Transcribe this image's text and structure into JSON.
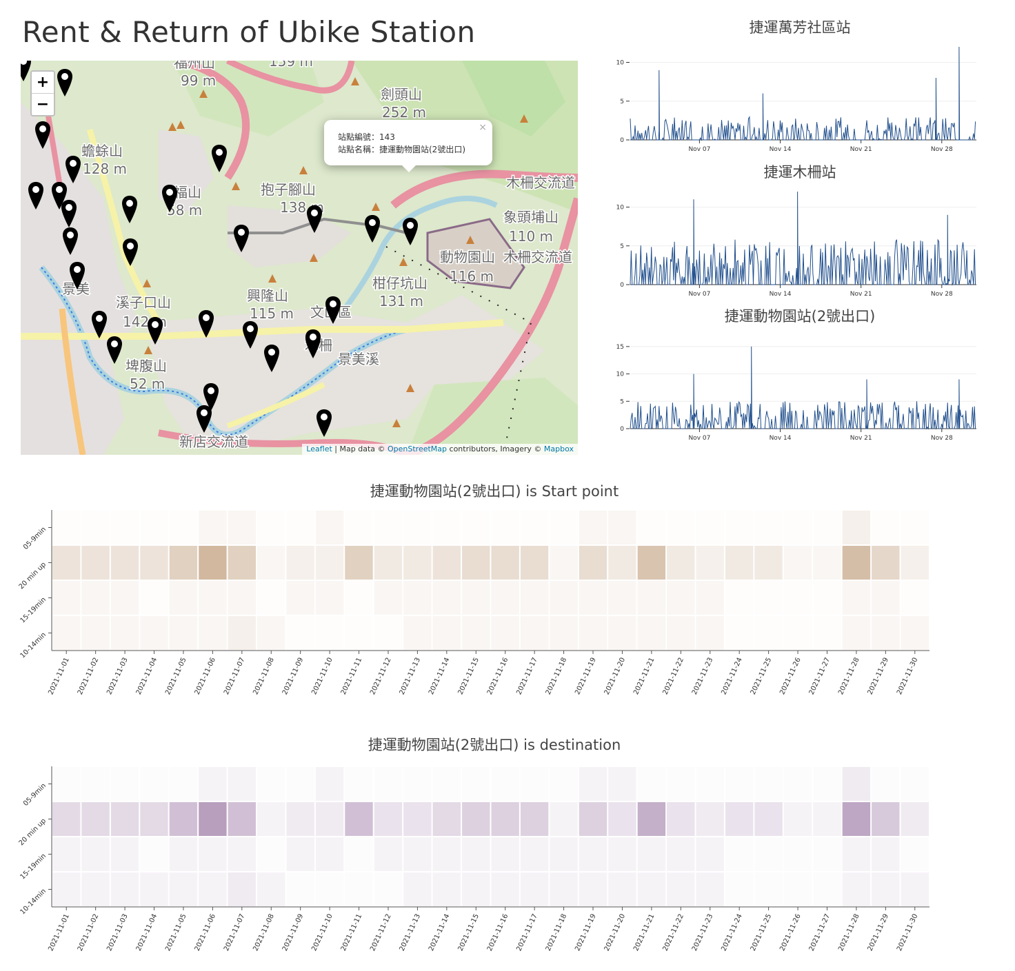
{
  "page": {
    "title": "Rent & Return of Ubike Station"
  },
  "map": {
    "zoom_in": "+",
    "zoom_out": "−",
    "popup": {
      "line1": "站點編號：143",
      "line2": "站點名稱：捷運動物園站(2號出口)",
      "close": "×"
    },
    "attribution": {
      "leaflet": "Leaflet",
      "sep1": " | Map data © ",
      "osm": "OpenStreetMap",
      "sep2": " contributors, Imagery © ",
      "mapbox": "Mapbox"
    },
    "labels": [
      {
        "text": "福州山"
      },
      {
        "text": "99 m"
      },
      {
        "text": "159 m"
      },
      {
        "text": "劍頭山"
      },
      {
        "text": "252 m"
      },
      {
        "text": "蟾蜍山"
      },
      {
        "text": "128 m"
      },
      {
        "text": "福山"
      },
      {
        "text": "58 m"
      },
      {
        "text": "抱子腳山"
      },
      {
        "text": "138 m"
      },
      {
        "text": "木柵交流道"
      },
      {
        "text": "象頭埔山"
      },
      {
        "text": "110 m"
      },
      {
        "text": "動物園山"
      },
      {
        "text": "116 m"
      },
      {
        "text": "木柵交流道"
      },
      {
        "text": "景美"
      },
      {
        "text": "溪子口山"
      },
      {
        "text": "142 m"
      },
      {
        "text": "興隆山"
      },
      {
        "text": "115 m"
      },
      {
        "text": "文山區"
      },
      {
        "text": "柑仔坑山"
      },
      {
        "text": "131 m"
      },
      {
        "text": "埤腹山"
      },
      {
        "text": "52 m"
      },
      {
        "text": "新店交流道"
      },
      {
        "text": "木柵"
      },
      {
        "text": "景美溪"
      }
    ]
  },
  "timeseries": {
    "x_ticks": [
      "Nov 07",
      "Nov 14",
      "Nov 21",
      "Nov 28"
    ],
    "line_color": "#1f4e8c",
    "charts": [
      {
        "title": "捷運萬芳社區站",
        "y_ticks": [
          "0",
          "5",
          "10"
        ],
        "ymax": 12
      },
      {
        "title": "捷運木柵站",
        "y_ticks": [
          "0",
          "5",
          "10"
        ],
        "ymax": 12
      },
      {
        "title": "捷運動物園站(2號出口)",
        "y_ticks": [
          "0",
          "5",
          "10",
          "15"
        ],
        "ymax": 17
      }
    ]
  },
  "chart_data": [
    {
      "type": "line",
      "title": "捷運萬芳社區站",
      "x_range": [
        "2021-11-01",
        "2021-11-30"
      ],
      "ylim": [
        0,
        12
      ],
      "peaks": [
        {
          "x": "2021-11-03",
          "y": 9
        },
        {
          "x": "2021-11-12",
          "y": 6
        },
        {
          "x": "2021-11-27",
          "y": 8
        },
        {
          "x": "2021-11-29",
          "y": 12
        }
      ],
      "typical_range": [
        0,
        3
      ]
    },
    {
      "type": "line",
      "title": "捷運木柵站",
      "x_range": [
        "2021-11-01",
        "2021-11-30"
      ],
      "ylim": [
        0,
        12
      ],
      "peaks": [
        {
          "x": "2021-11-06",
          "y": 11
        },
        {
          "x": "2021-11-15",
          "y": 12
        },
        {
          "x": "2021-11-28",
          "y": 9
        }
      ],
      "typical_range": [
        0,
        6
      ]
    },
    {
      "type": "line",
      "title": "捷運動物園站(2號出口)",
      "x_range": [
        "2021-11-01",
        "2021-11-30"
      ],
      "ylim": [
        0,
        17
      ],
      "peaks": [
        {
          "x": "2021-11-06",
          "y": 10
        },
        {
          "x": "2021-11-11",
          "y": 15
        },
        {
          "x": "2021-11-21",
          "y": 9
        },
        {
          "x": "2021-11-29",
          "y": 9
        }
      ],
      "typical_range": [
        0,
        5
      ]
    },
    {
      "type": "heatmap",
      "title": "捷運動物園站(2號出口) is Start point",
      "color": "#b48c64",
      "x": [
        "2021-11-01",
        "2021-11-02",
        "2021-11-03",
        "2021-11-04",
        "2021-11-05",
        "2021-11-06",
        "2021-11-07",
        "2021-11-08",
        "2021-11-09",
        "2021-11-10",
        "2021-11-11",
        "2021-11-12",
        "2021-11-13",
        "2021-11-14",
        "2021-11-15",
        "2021-11-16",
        "2021-11-17",
        "2021-11-18",
        "2021-11-19",
        "2021-11-20",
        "2021-11-21",
        "2021-11-22",
        "2021-11-23",
        "2021-11-24",
        "2021-11-25",
        "2021-11-26",
        "2021-11-27",
        "2021-11-28",
        "2021-11-29",
        "2021-11-30"
      ],
      "y": [
        "05-9min",
        "20 min up",
        "15-19min",
        "10-14min"
      ],
      "values": [
        [
          0,
          0,
          0,
          0,
          0,
          1,
          1,
          0,
          0,
          1,
          0,
          0,
          0,
          0,
          0,
          0,
          0,
          0,
          1,
          1,
          0,
          0,
          0,
          0,
          0,
          0,
          0,
          2,
          0,
          0
        ],
        [
          4,
          4,
          4,
          4,
          7,
          11,
          7,
          1,
          2,
          2,
          7,
          3,
          3,
          4,
          5,
          5,
          5,
          1,
          5,
          3,
          9,
          3,
          2,
          3,
          3,
          1,
          1,
          10,
          6,
          2
        ],
        [
          1,
          1,
          1,
          0,
          1,
          1,
          1,
          0,
          1,
          1,
          0,
          1,
          1,
          1,
          1,
          1,
          1,
          1,
          1,
          1,
          1,
          1,
          1,
          0,
          0,
          0,
          0,
          1,
          1,
          0
        ],
        [
          1,
          1,
          1,
          1,
          1,
          1,
          2,
          1,
          0,
          0,
          0,
          0,
          1,
          1,
          1,
          1,
          1,
          1,
          1,
          1,
          1,
          1,
          1,
          0,
          0,
          0,
          0,
          1,
          1,
          1
        ]
      ]
    },
    {
      "type": "heatmap",
      "title": "捷運動物園站(2號出口) is destination",
      "color": "#8c6496",
      "x": [
        "2021-11-01",
        "2021-11-02",
        "2021-11-03",
        "2021-11-04",
        "2021-11-05",
        "2021-11-06",
        "2021-11-07",
        "2021-11-08",
        "2021-11-09",
        "2021-11-10",
        "2021-11-11",
        "2021-11-12",
        "2021-11-13",
        "2021-11-14",
        "2021-11-15",
        "2021-11-16",
        "2021-11-17",
        "2021-11-18",
        "2021-11-19",
        "2021-11-20",
        "2021-11-21",
        "2021-11-22",
        "2021-11-23",
        "2021-11-24",
        "2021-11-25",
        "2021-11-26",
        "2021-11-27",
        "2021-11-28",
        "2021-11-29",
        "2021-11-30"
      ],
      "y": [
        "05-9min",
        "20 min up",
        "15-19min",
        "10-14min"
      ],
      "values": [
        [
          0,
          0,
          0,
          0,
          0,
          1,
          1,
          0,
          0,
          1,
          0,
          0,
          0,
          0,
          0,
          0,
          0,
          0,
          1,
          1,
          0,
          0,
          0,
          0,
          0,
          0,
          0,
          2,
          0,
          0
        ],
        [
          4,
          4,
          4,
          4,
          7,
          11,
          7,
          1,
          2,
          2,
          7,
          3,
          3,
          4,
          5,
          5,
          5,
          1,
          5,
          3,
          9,
          3,
          2,
          3,
          3,
          1,
          1,
          10,
          6,
          2
        ],
        [
          1,
          1,
          1,
          0,
          1,
          1,
          1,
          0,
          1,
          1,
          0,
          1,
          1,
          1,
          1,
          1,
          1,
          1,
          1,
          1,
          1,
          1,
          1,
          0,
          0,
          0,
          0,
          1,
          1,
          0
        ],
        [
          1,
          1,
          1,
          1,
          1,
          1,
          2,
          1,
          0,
          0,
          0,
          0,
          1,
          1,
          1,
          1,
          1,
          1,
          1,
          1,
          1,
          1,
          1,
          0,
          0,
          0,
          0,
          1,
          1,
          1
        ]
      ]
    }
  ]
}
